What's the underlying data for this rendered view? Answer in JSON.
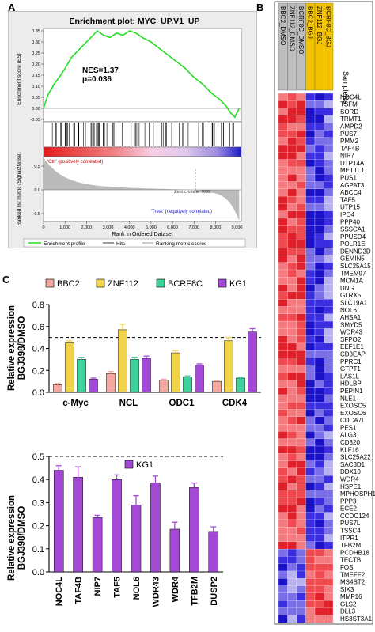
{
  "panels": {
    "a": "A",
    "b": "B",
    "c": "C"
  },
  "gsea": {
    "title": "Enrichment plot: MYC_UP.V1_UP",
    "nes": "NES=1.37",
    "p": "p=0.036",
    "ylabel_es": "Enrichment score (ES)",
    "ylabel_metric": "Ranked list metric (Signal2Noise)",
    "xlabel": "Rank in Ordered Dataset",
    "es_ticks": [
      "0.35",
      "0.30",
      "0.25",
      "0.20",
      "0.15",
      "0.10",
      "0.05",
      "0.00",
      "-0.05"
    ],
    "metric_ticks": [
      "0.5",
      "0.0",
      "-0.5"
    ],
    "x_ticks": [
      "0",
      "1,000",
      "2,000",
      "3,000",
      "4,000",
      "5,000",
      "6,000",
      "7,000",
      "8,000",
      "9,000"
    ],
    "ctrl_label": "'Ctrl' (positively correlated)",
    "treat_label": "'Treat' (negatively correlated)",
    "zero_cross": "Zero cross at 7092",
    "legend": [
      "Enrichment profile",
      "Hits",
      "Ranking metric scores"
    ],
    "colors": {
      "profile": "#22dd22",
      "hits": "#000000",
      "metric": "#bbbbbb"
    }
  },
  "heatmap": {
    "columns": [
      "BBC2_DMSO",
      "ZNF112_DMSO",
      "BCRF8C_DMSO",
      "BBC2_BGJ",
      "ZNF112_BGJ",
      "BCRF8C_BGJ"
    ],
    "column_colors": [
      "#bdbdbd",
      "#bdbdbd",
      "#bdbdbd",
      "#f3c200",
      "#f3c200",
      "#f3c200"
    ],
    "sample_label": "SampleNa",
    "genes": [
      "NOC4L",
      "TSFM",
      "SORD",
      "TRMT1",
      "AMPD2",
      "PUS7",
      "PMM2",
      "TAF4B",
      "NIP7",
      "UTP14A",
      "METTL1",
      "PUS1",
      "AGPAT3",
      "ABCC4",
      "TAF5",
      "UTP15",
      "IPO4",
      "PPP40",
      "SSSCA1",
      "PPUSD4",
      "POLR1E",
      "DENND2D",
      "GEMIN5",
      "SLC25A15",
      "TMEM97",
      "MCM1A",
      "UNG",
      "GLRX5",
      "SLC19A1",
      "NOL6",
      "AHSA1",
      "SMYD5",
      "WDR43",
      "SFPO2",
      "EEF1E1",
      "CD3EAP",
      "PPRC1",
      "GTPT1",
      "LAS1L",
      "HDLBP",
      "PEPIN1",
      "NLE1",
      "EXOSC5",
      "EXOSC6",
      "CDCA7L",
      "PES1",
      "ALG3",
      "CD320",
      "KLF16",
      "SLC25A22",
      "SAC3D1",
      "DDX10",
      "WDR4",
      "HSPE1",
      "MPHOSPH10",
      "PPP3",
      "ECE2",
      "CCDC124",
      "PUS7L",
      "TSSC4",
      "ITPR1",
      "TFB2M",
      "PCDHB18",
      "TECTB",
      "FOS",
      "TMEFF2",
      "MS4ST2",
      "SIX3",
      "MMP16",
      "GLS2",
      "DLL3",
      "HS3ST3A1"
    ]
  },
  "bar1": {
    "ylabel1": "Relative expression",
    "ylabel2": "BGJ398/DMSO",
    "y_ticks": [
      "0.0",
      "0.2",
      "0.4",
      "0.6",
      "0.8"
    ],
    "groups": [
      "c-Myc",
      "NCL",
      "ODC1",
      "CDK4"
    ],
    "series_names": [
      "BBC2",
      "ZNF112",
      "BCRF8C",
      "KG1"
    ],
    "series_colors": [
      "#f4a8a0",
      "#f1d34a",
      "#3fd29a",
      "#a349d6"
    ]
  },
  "bar2": {
    "ylabel1": "Relative expression",
    "ylabel2": "BGJ398/DMSO",
    "y_ticks": [
      "0.0",
      "0.1",
      "0.2",
      "0.3",
      "0.4",
      "0.5"
    ],
    "legend": "KG1",
    "color": "#a349d6"
  },
  "chart_data": [
    {
      "type": "bar",
      "categories": [
        "c-Myc",
        "NCL",
        "ODC1",
        "CDK4"
      ],
      "series": [
        {
          "name": "BBC2",
          "values": [
            0.07,
            0.17,
            0.11,
            0.1
          ],
          "errors": [
            0.01,
            0.02,
            0.01,
            0.01
          ]
        },
        {
          "name": "ZNF112",
          "values": [
            0.45,
            0.57,
            0.36,
            0.47
          ],
          "errors": [
            0.02,
            0.05,
            0.02,
            0.03
          ]
        },
        {
          "name": "BCRF8C",
          "values": [
            0.3,
            0.3,
            0.14,
            0.13
          ],
          "errors": [
            0.02,
            0.02,
            0.01,
            0.01
          ]
        },
        {
          "name": "KG1",
          "values": [
            0.12,
            0.31,
            0.25,
            0.55
          ],
          "errors": [
            0.01,
            0.02,
            0.01,
            0.03
          ]
        }
      ],
      "ylabel": "Relative expression BGJ398/DMSO",
      "ylim": [
        0,
        0.8
      ],
      "reference_line": 0.5,
      "legend": "top"
    },
    {
      "type": "bar",
      "categories": [
        "NOC4L",
        "TAF4B",
        "NIP7",
        "TAF5",
        "NOL6",
        "WDR43",
        "WDR4",
        "TFB2M",
        "DUSP2"
      ],
      "series": [
        {
          "name": "KG1",
          "values": [
            0.44,
            0.41,
            0.235,
            0.4,
            0.29,
            0.385,
            0.185,
            0.365,
            0.175
          ],
          "errors": [
            0.02,
            0.045,
            0.01,
            0.02,
            0.04,
            0.03,
            0.03,
            0.02,
            0.02
          ]
        }
      ],
      "ylabel": "Relative expression BGJ398/DMSO",
      "ylim": [
        0,
        0.5
      ],
      "reference_line": 0.5,
      "legend": "top"
    },
    {
      "type": "line",
      "title": "Enrichment plot: MYC_UP.V1_UP",
      "x": [
        0,
        200,
        500,
        800,
        1000,
        1300,
        1600,
        1900,
        2200,
        2500,
        2800,
        3100,
        3400,
        3700,
        4000,
        4300,
        4600,
        5000,
        5400,
        5800,
        6200,
        6600,
        7000,
        7400,
        7800,
        8200,
        8500,
        8700,
        8900,
        9100
      ],
      "series": [
        {
          "name": "Enrichment profile",
          "values": [
            0.0,
            0.06,
            0.11,
            0.15,
            0.18,
            0.23,
            0.26,
            0.29,
            0.32,
            0.35,
            0.33,
            0.32,
            0.34,
            0.33,
            0.35,
            0.34,
            0.32,
            0.3,
            0.27,
            0.24,
            0.21,
            0.18,
            0.14,
            0.11,
            0.07,
            0.04,
            0.01,
            -0.02,
            -0.04,
            0.0
          ]
        }
      ],
      "xlabel": "Rank in Ordered Dataset",
      "ylabel": "Enrichment score (ES)",
      "ylim": [
        -0.05,
        0.35
      ],
      "xlim": [
        0,
        9000
      ]
    }
  ]
}
